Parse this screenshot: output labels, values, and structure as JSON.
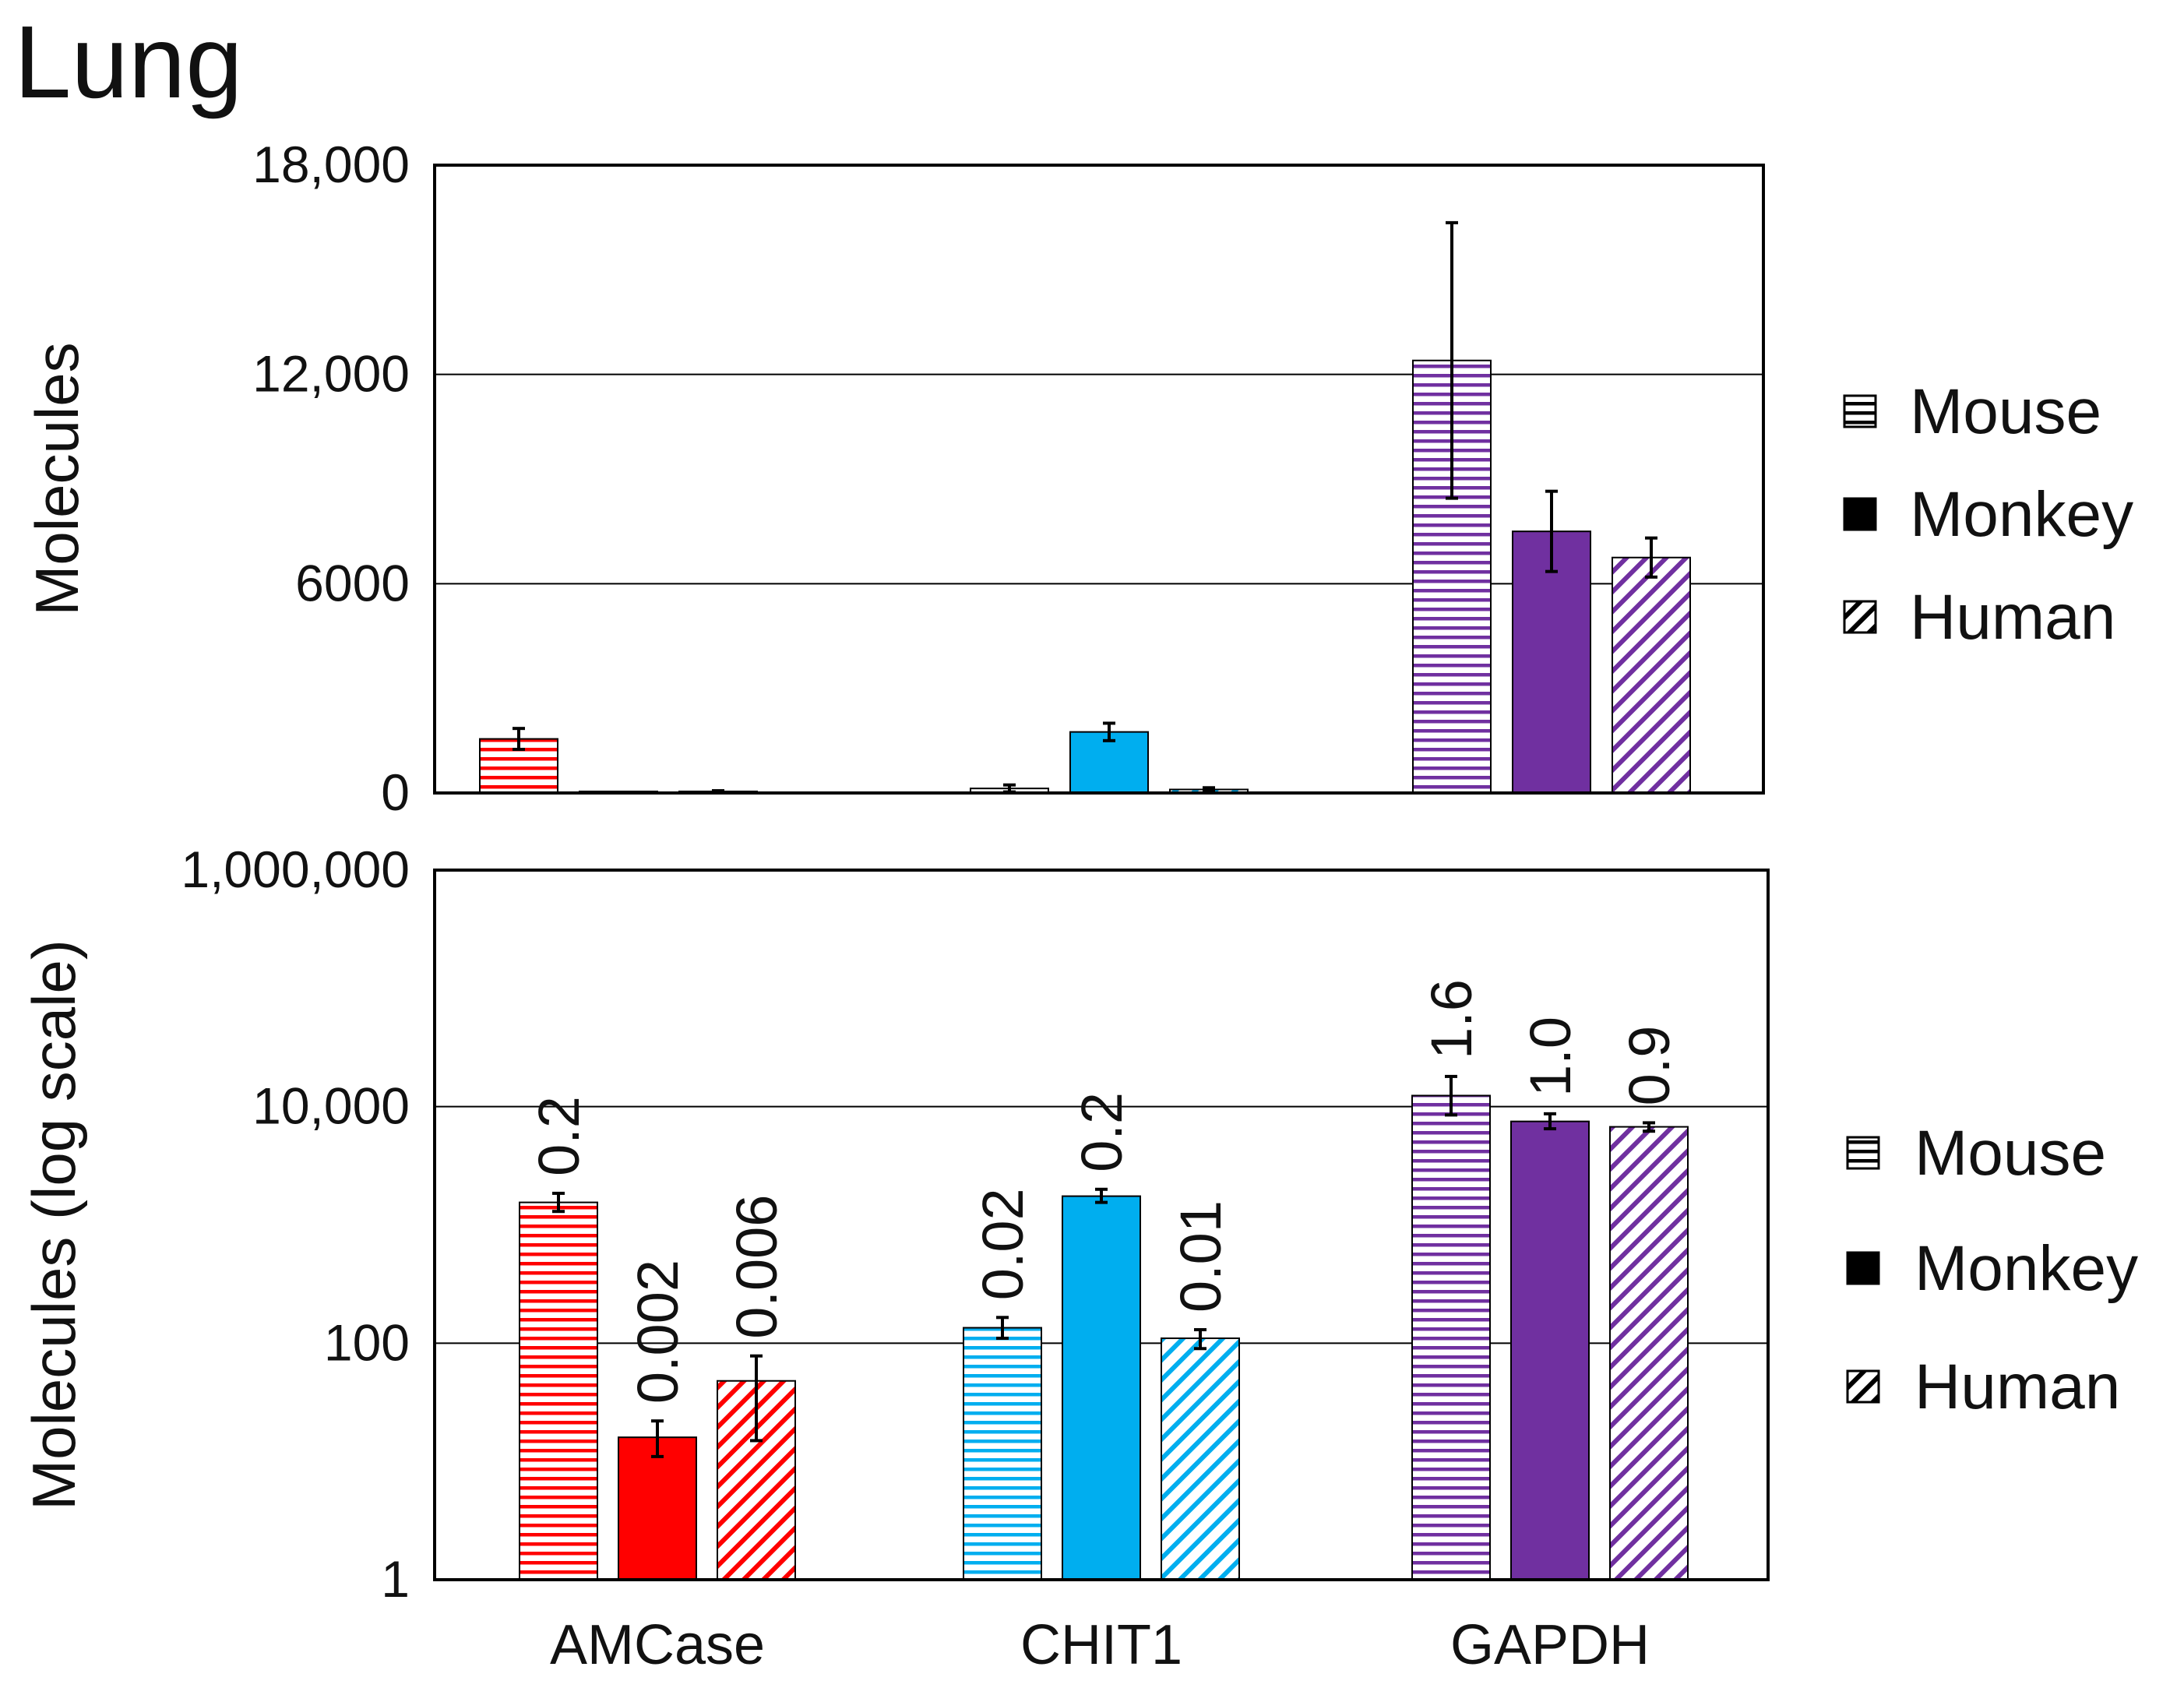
{
  "figure_title": "Lung",
  "colors": {
    "AMCase": "#ff0000",
    "CHIT1": "#00aeef",
    "GAPDH": "#7030a0",
    "grid": "#000000",
    "axis": "#000000"
  },
  "legend": [
    {
      "label": "Mouse",
      "pattern": "horizontal-stripes"
    },
    {
      "label": "Monkey",
      "pattern": "solid"
    },
    {
      "label": "Human",
      "pattern": "diagonal-stripes"
    }
  ],
  "chart_data": [
    {
      "type": "bar",
      "scale": "linear",
      "title": "",
      "xlabel": "",
      "ylabel": "Molecules",
      "ylim": [
        0,
        18000
      ],
      "yticks": [
        0,
        6000,
        12000,
        18000
      ],
      "ytick_labels": [
        "0",
        "6000",
        "12,000",
        "18,000"
      ],
      "gridlines": [
        6000,
        12000
      ],
      "categories": [
        "AMCase",
        "CHIT1",
        "GAPDH"
      ],
      "show_category_labels": false,
      "legend_position": "right",
      "series": [
        {
          "name": "Mouse",
          "values": [
            1550,
            130,
            12400
          ],
          "errors": [
            300,
            100,
            3950
          ]
        },
        {
          "name": "Monkey",
          "values": [
            15,
            1750,
            7500
          ],
          "errors": [
            5,
            250,
            1150
          ]
        },
        {
          "name": "Human",
          "values": [
            45,
            100,
            6750
          ],
          "errors": [
            20,
            50,
            560
          ]
        }
      ]
    },
    {
      "type": "bar",
      "scale": "log",
      "title": "",
      "xlabel": "",
      "ylabel": "Molecules (log scale)",
      "ylim": [
        1,
        1000000
      ],
      "yticks": [
        1,
        100,
        10000,
        1000000
      ],
      "ytick_labels": [
        "1",
        "100",
        "10,000",
        "1,000,000"
      ],
      "gridlines": [
        100,
        10000
      ],
      "categories": [
        "AMCase",
        "CHIT1",
        "GAPDH"
      ],
      "show_category_labels": true,
      "legend_position": "right",
      "series": [
        {
          "name": "Mouse",
          "values": [
            1550,
            135,
            12400
          ],
          "err_low": [
            1300,
            110,
            8500
          ],
          "err_high": [
            1850,
            165,
            18000
          ],
          "data_labels": [
            "0.2",
            "0.02",
            "1.6"
          ]
        },
        {
          "name": "Monkey",
          "values": [
            16,
            1750,
            7500
          ],
          "err_low": [
            11,
            1550,
            6500
          ],
          "err_high": [
            22,
            2000,
            8700
          ],
          "data_labels": [
            "0.002",
            "0.2",
            "1.0"
          ]
        },
        {
          "name": "Human",
          "values": [
            48,
            110,
            6750
          ],
          "err_low": [
            15,
            90,
            6200
          ],
          "err_high": [
            78,
            130,
            7300
          ],
          "data_labels": [
            "0.006",
            "0.01",
            "0.9"
          ]
        }
      ]
    }
  ]
}
